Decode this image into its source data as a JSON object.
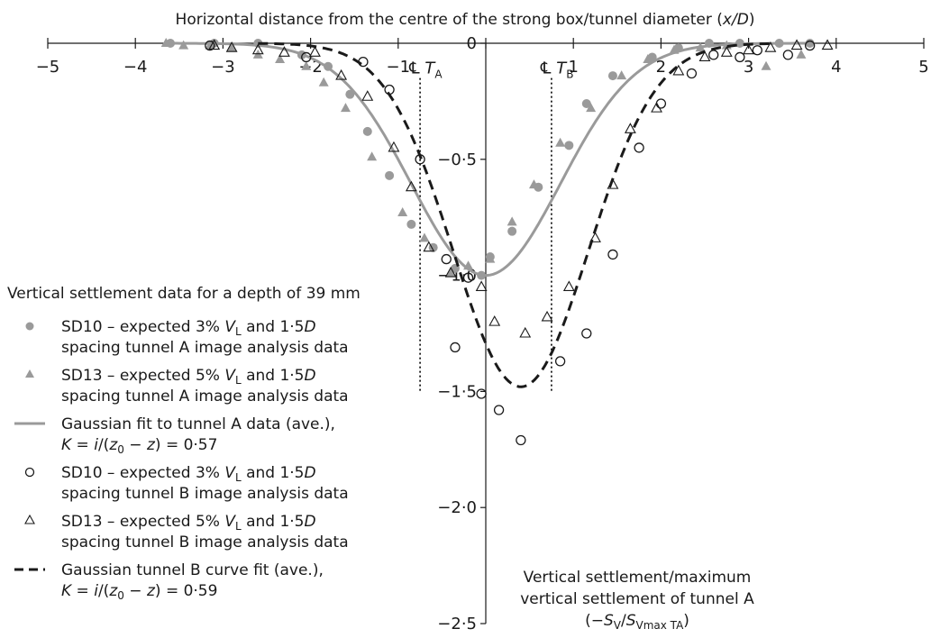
{
  "chart_data": {
    "type": "scatter",
    "title": "",
    "xlabel": "Horizontal distance from the centre of the strong box/tunnel diameter (x/D)",
    "ylabel": "Vertical settlement/maximum vertical settlement of tunnel A (−SV/SVmax TA)",
    "xlim": [
      -5,
      5
    ],
    "ylim": [
      -2.5,
      0
    ],
    "x_ticks": [
      "−5",
      "−4",
      "−3",
      "−2",
      "−1",
      "0",
      "1",
      "2",
      "3",
      "4",
      "5"
    ],
    "y_ticks": [
      "0",
      "−0·5",
      "−1·0",
      "−1·5",
      "−2·0",
      "−2·5"
    ],
    "grid": false,
    "legend_position": "left",
    "legend_title": "Vertical settlement data for a depth of 39 mm",
    "annotations": {
      "centre_a": "℄",
      "label_a": "T",
      "label_a_sub": "A",
      "centre_b": "℄",
      "label_b": "T",
      "label_b_sub": "B",
      "centre_a_x": -0.75,
      "centre_b_x": 0.75
    },
    "y_title_lines": [
      "Vertical settlement/maximum",
      "vertical settlement of tunnel A"
    ],
    "y_title_formula": {
      "open": "(−",
      "s1": "S",
      "s1sub": "V",
      "mid": "/",
      "s2": "S",
      "s2sub": "Vmax TA",
      "close": ")"
    },
    "x_title_parts": {
      "before": "Horizontal distance from the centre of the strong box/tunnel diameter (",
      "italic": "x/D",
      "after": ")"
    },
    "series": [
      {
        "name": "SD10 – expected 3% VL and 1·5D spacing tunnel A image analysis data",
        "marker": "filled-circle",
        "color": "#9a9a9a",
        "x": [
          -3.6,
          -3.1,
          -2.6,
          -2.1,
          -1.8,
          -1.55,
          -1.35,
          -1.1,
          -0.85,
          -0.6,
          -0.35,
          -0.05,
          0.05,
          0.3,
          0.6,
          0.95,
          1.15,
          1.45,
          1.9,
          2.2,
          2.55,
          2.9,
          3.35,
          3.7
        ],
        "y": [
          0,
          0,
          0,
          -0.05,
          -0.1,
          -0.22,
          -0.38,
          -0.57,
          -0.78,
          -0.88,
          -0.97,
          -1.0,
          -0.92,
          -0.81,
          -0.62,
          -0.44,
          -0.26,
          -0.14,
          -0.06,
          -0.02,
          0,
          0,
          0,
          0
        ]
      },
      {
        "name": "SD13 – expected 5% VL and 1·5D spacing tunnel A image analysis data",
        "marker": "filled-triangle",
        "color": "#9a9a9a",
        "x": [
          -3.65,
          -3.45,
          -3.15,
          -2.9,
          -2.6,
          -2.35,
          -2.05,
          -1.85,
          -1.6,
          -1.3,
          -0.95,
          -0.7,
          -0.4,
          -0.2,
          0.05,
          0.3,
          0.55,
          0.85,
          1.2,
          1.55,
          1.85,
          2.15,
          2.45,
          2.75,
          3.2,
          3.6
        ],
        "y": [
          0,
          -0.01,
          -0.01,
          -0.02,
          -0.05,
          -0.07,
          -0.1,
          -0.17,
          -0.28,
          -0.49,
          -0.73,
          -0.84,
          -0.99,
          -0.96,
          -0.93,
          -0.77,
          -0.61,
          -0.43,
          -0.28,
          -0.14,
          -0.07,
          -0.03,
          -0.02,
          -0.01,
          -0.1,
          -0.05
        ]
      },
      {
        "name": "Gaussian fit to tunnel A data (ave.), K = i/(z0 − z) = 0·57",
        "marker": "line",
        "color": "#9a9a9a",
        "dash": "solid",
        "center": 0.0,
        "sigma": 0.85,
        "peak": -1.0,
        "x_range": [
          -3.6,
          3.7
        ]
      },
      {
        "name": "SD10 – expected 3% VL and 1·5D spacing tunnel B image analysis data",
        "marker": "open-circle",
        "color": "#1a1a1a",
        "x": [
          -3.15,
          -2.05,
          -1.4,
          -1.1,
          -0.75,
          -0.45,
          -0.2,
          -0.35,
          -0.05,
          0.15,
          0.4,
          0.85,
          1.15,
          1.45,
          1.75,
          2.0,
          2.35,
          2.6,
          2.9,
          3.1,
          3.45,
          3.7
        ],
        "y": [
          -0.01,
          -0.06,
          -0.08,
          -0.2,
          -0.5,
          -0.93,
          -1.01,
          -1.31,
          -1.51,
          -1.58,
          -1.71,
          -1.37,
          -1.25,
          -0.91,
          -0.45,
          -0.26,
          -0.13,
          -0.05,
          -0.06,
          -0.03,
          -0.05,
          -0.01
        ]
      },
      {
        "name": "SD13 – expected 5% VL and 1·5D spacing tunnel B image analysis data",
        "marker": "open-triangle",
        "color": "#1a1a1a",
        "x": [
          -3.1,
          -2.9,
          -2.6,
          -2.3,
          -1.95,
          -1.65,
          -1.35,
          -1.05,
          -0.85,
          -0.65,
          -0.4,
          -0.05,
          0.1,
          0.45,
          0.7,
          0.95,
          1.25,
          1.45,
          1.65,
          1.95,
          2.2,
          2.5,
          2.75,
          3.0,
          3.25,
          3.55,
          3.9
        ],
        "y": [
          -0.01,
          -0.02,
          -0.03,
          -0.04,
          -0.04,
          -0.14,
          -0.23,
          -0.45,
          -0.62,
          -0.88,
          -0.99,
          -1.05,
          -1.2,
          -1.25,
          -1.18,
          -1.05,
          -0.84,
          -0.61,
          -0.37,
          -0.28,
          -0.12,
          -0.06,
          -0.04,
          -0.03,
          -0.02,
          -0.01,
          -0.01
        ]
      },
      {
        "name": "Gaussian tunnel B curve fit (ave.), K = i/(z0 − z) = 0·59",
        "marker": "line",
        "color": "#1a1a1a",
        "dash": "dashed",
        "center": 0.4,
        "sigma": 0.77,
        "peak": -1.48,
        "x_range": [
          -2.6,
          3.3
        ]
      }
    ]
  },
  "legend": {
    "title": "Vertical settlement data for a depth of 39 mm",
    "items": [
      {
        "symbol": "filled-circle",
        "line1": {
          "a": "SD10 – expected 3% ",
          "v": "V",
          "vsub": "L",
          "b": " and 1·5",
          "d": "D"
        },
        "line2": "spacing tunnel A image analysis data"
      },
      {
        "symbol": "filled-triangle",
        "line1": {
          "a": "SD13 – expected 5% ",
          "v": "V",
          "vsub": "L",
          "b": " and 1·5",
          "d": "D"
        },
        "line2": "spacing tunnel A image analysis data"
      },
      {
        "symbol": "solid-line",
        "line1": {
          "a": "Gaussian fit to tunnel A data (ave.),",
          "v": "",
          "vsub": "",
          "b": "",
          "d": ""
        },
        "k_value": "0·57"
      },
      {
        "symbol": "open-circle",
        "line1": {
          "a": "SD10 – expected 3% ",
          "v": "V",
          "vsub": "L",
          "b": " and 1·5",
          "d": "D"
        },
        "line2": "spacing tunnel B image analysis data"
      },
      {
        "symbol": "open-triangle",
        "line1": {
          "a": "SD13 – expected 5% ",
          "v": "V",
          "vsub": "L",
          "b": " and 1·5",
          "d": "D"
        },
        "line2": "spacing tunnel B image analysis data"
      },
      {
        "symbol": "dashed-line",
        "line1": {
          "a": "Gaussian tunnel B curve fit (ave.),",
          "v": "",
          "vsub": "",
          "b": "",
          "d": ""
        },
        "k_value": "0·59"
      }
    ]
  }
}
